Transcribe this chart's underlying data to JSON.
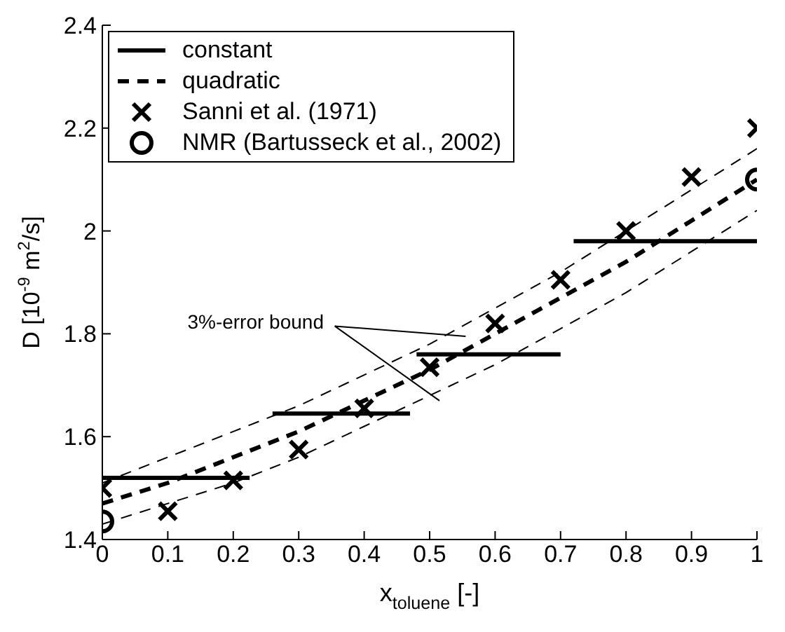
{
  "chart_data": {
    "type": "line",
    "xlabel": "x$_{toluene}$ [-]",
    "ylabel": "D [10$^{-9}$ m$^{2}$/s]",
    "xlim": [
      0,
      1
    ],
    "xticks": [
      0,
      0.1,
      0.2,
      0.3,
      0.4,
      0.5,
      0.6,
      0.7,
      0.8,
      0.9,
      1
    ],
    "ylim": [
      1.4,
      2.4
    ],
    "yticks": [
      1.4,
      1.6,
      1.8,
      2,
      2.2,
      2.4
    ],
    "legend": "top left",
    "annotations": [
      "3%-error bound"
    ],
    "series": [
      {
        "name": "constant",
        "line_style": "solid",
        "color": "#000000",
        "x": [
          0,
          0.225,
          0.24,
          0.26,
          0.47,
          0.475,
          0.48,
          0.7,
          0.71,
          0.72,
          1
        ],
        "values": [
          1.52,
          1.52,
          null,
          1.645,
          1.645,
          null,
          1.76,
          1.76,
          null,
          1.98,
          1.98
        ]
      },
      {
        "name": "quadratic",
        "line_style": "dashed",
        "color": "#000000",
        "x": [
          0,
          0.1,
          0.2,
          0.3,
          0.4,
          0.5,
          0.6,
          0.7,
          0.8,
          0.9,
          1
        ],
        "values": [
          1.47,
          1.51,
          1.56,
          1.61,
          1.67,
          1.73,
          1.8,
          1.87,
          1.94,
          2.02,
          2.1
        ]
      },
      {
        "line_style": "dashed",
        "color": "#000000",
        "x": [
          0,
          0.1,
          0.2,
          0.3,
          0.4,
          0.5,
          0.6,
          0.7,
          0.8,
          0.9,
          1
        ],
        "values": [
          1.51,
          1.56,
          1.61,
          1.66,
          1.72,
          1.78,
          1.85,
          1.92,
          2.0,
          2.08,
          2.16
        ]
      },
      {
        "line_style": "dashed",
        "color": "#000000",
        "x": [
          0,
          0.1,
          0.2,
          0.3,
          0.4,
          0.5,
          0.6,
          0.7,
          0.8,
          0.9,
          1
        ],
        "values": [
          1.43,
          1.47,
          1.51,
          1.56,
          1.62,
          1.68,
          1.74,
          1.81,
          1.88,
          1.96,
          2.04
        ]
      },
      {
        "name": "Sanni et al. (1971)",
        "type": "scatter",
        "marker": "cross",
        "color": "#000000",
        "x": [
          0,
          0.1,
          0.2,
          0.3,
          0.4,
          0.5,
          0.6,
          0.7,
          0.8,
          0.9,
          1
        ],
        "values": [
          1.5,
          1.455,
          1.515,
          1.575,
          1.655,
          1.735,
          1.82,
          1.905,
          2.0,
          2.105,
          2.2
        ]
      },
      {
        "name": "NMR (Bartusseck et al., 2002)",
        "type": "scatter",
        "marker": "circle",
        "color": "#000000",
        "x": [
          0,
          1
        ],
        "values": [
          1.435,
          2.1
        ]
      }
    ]
  }
}
